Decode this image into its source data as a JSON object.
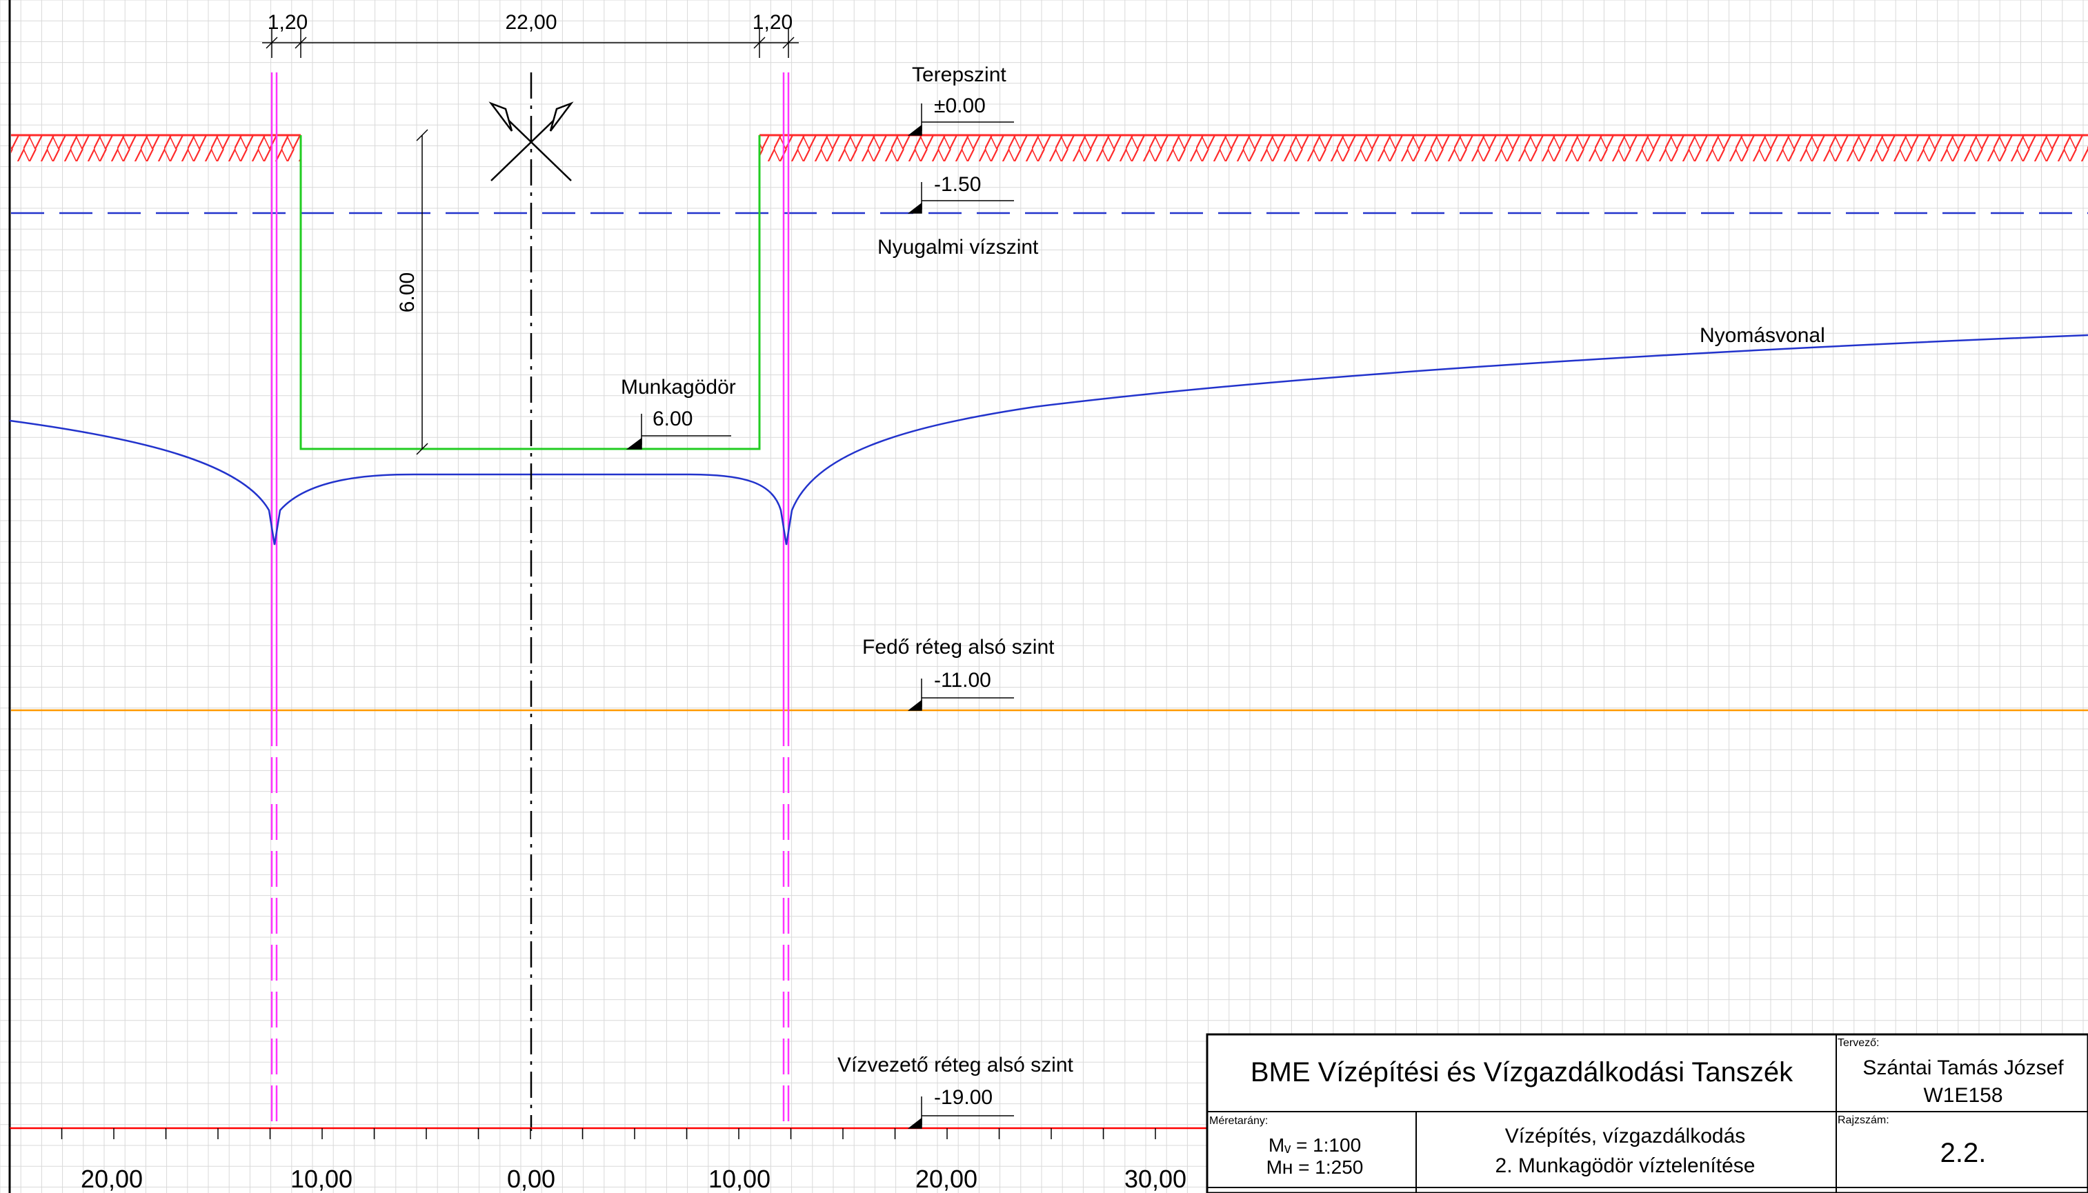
{
  "colors": {
    "grid": "#d9d9d9",
    "ground_hatch": "#ff2a2a",
    "pit": "#22cc22",
    "wells": "#ff33ff",
    "water_table": "#2233cc",
    "pressure_line": "#2233cc",
    "covering_layer": "#ff9900",
    "aquifer_bottom": "#ff0000"
  },
  "icons": {
    "north_symbol": "crossed-flags-icon"
  },
  "dimensions": {
    "top": [
      "1,20",
      "22,00",
      "1,20"
    ],
    "pit_depth": "6.00"
  },
  "labels": {
    "terrain_title": "Terepszint",
    "terrain_level": "±0.00",
    "water_level": "-1.50",
    "water_title": "Nyugalmi vízszint",
    "pressure_line": "Nyomásvonal",
    "pit_title": "Munkagödör",
    "pit_level": "6.00",
    "cover_title": "Fedő réteg alsó szint",
    "cover_level": "-11.00",
    "aquifer_title": "Vízvezető réteg alsó szint",
    "aquifer_level": "-19.00"
  },
  "axis": {
    "ticks": [
      "20,00",
      "10,00",
      "0,00",
      "10,00",
      "20,00",
      "30,00"
    ]
  },
  "title_block": {
    "institution": "BME Vízépítési és Vízgazdálkodási Tanszék",
    "designer_label": "Tervező:",
    "designer_name": "Szántai Tamás József",
    "designer_code": "W1E158",
    "scale_label": "Méretarány:",
    "scale_v": "Mᵥ = 1:100",
    "scale_h": "Mʜ = 1:250",
    "subject": "Vízépítés, vízgazdálkodás",
    "drawing_title": "2. Munkagödör víztelenítése",
    "drawing_number_label": "Rajzszám:",
    "drawing_number": "2.2."
  }
}
